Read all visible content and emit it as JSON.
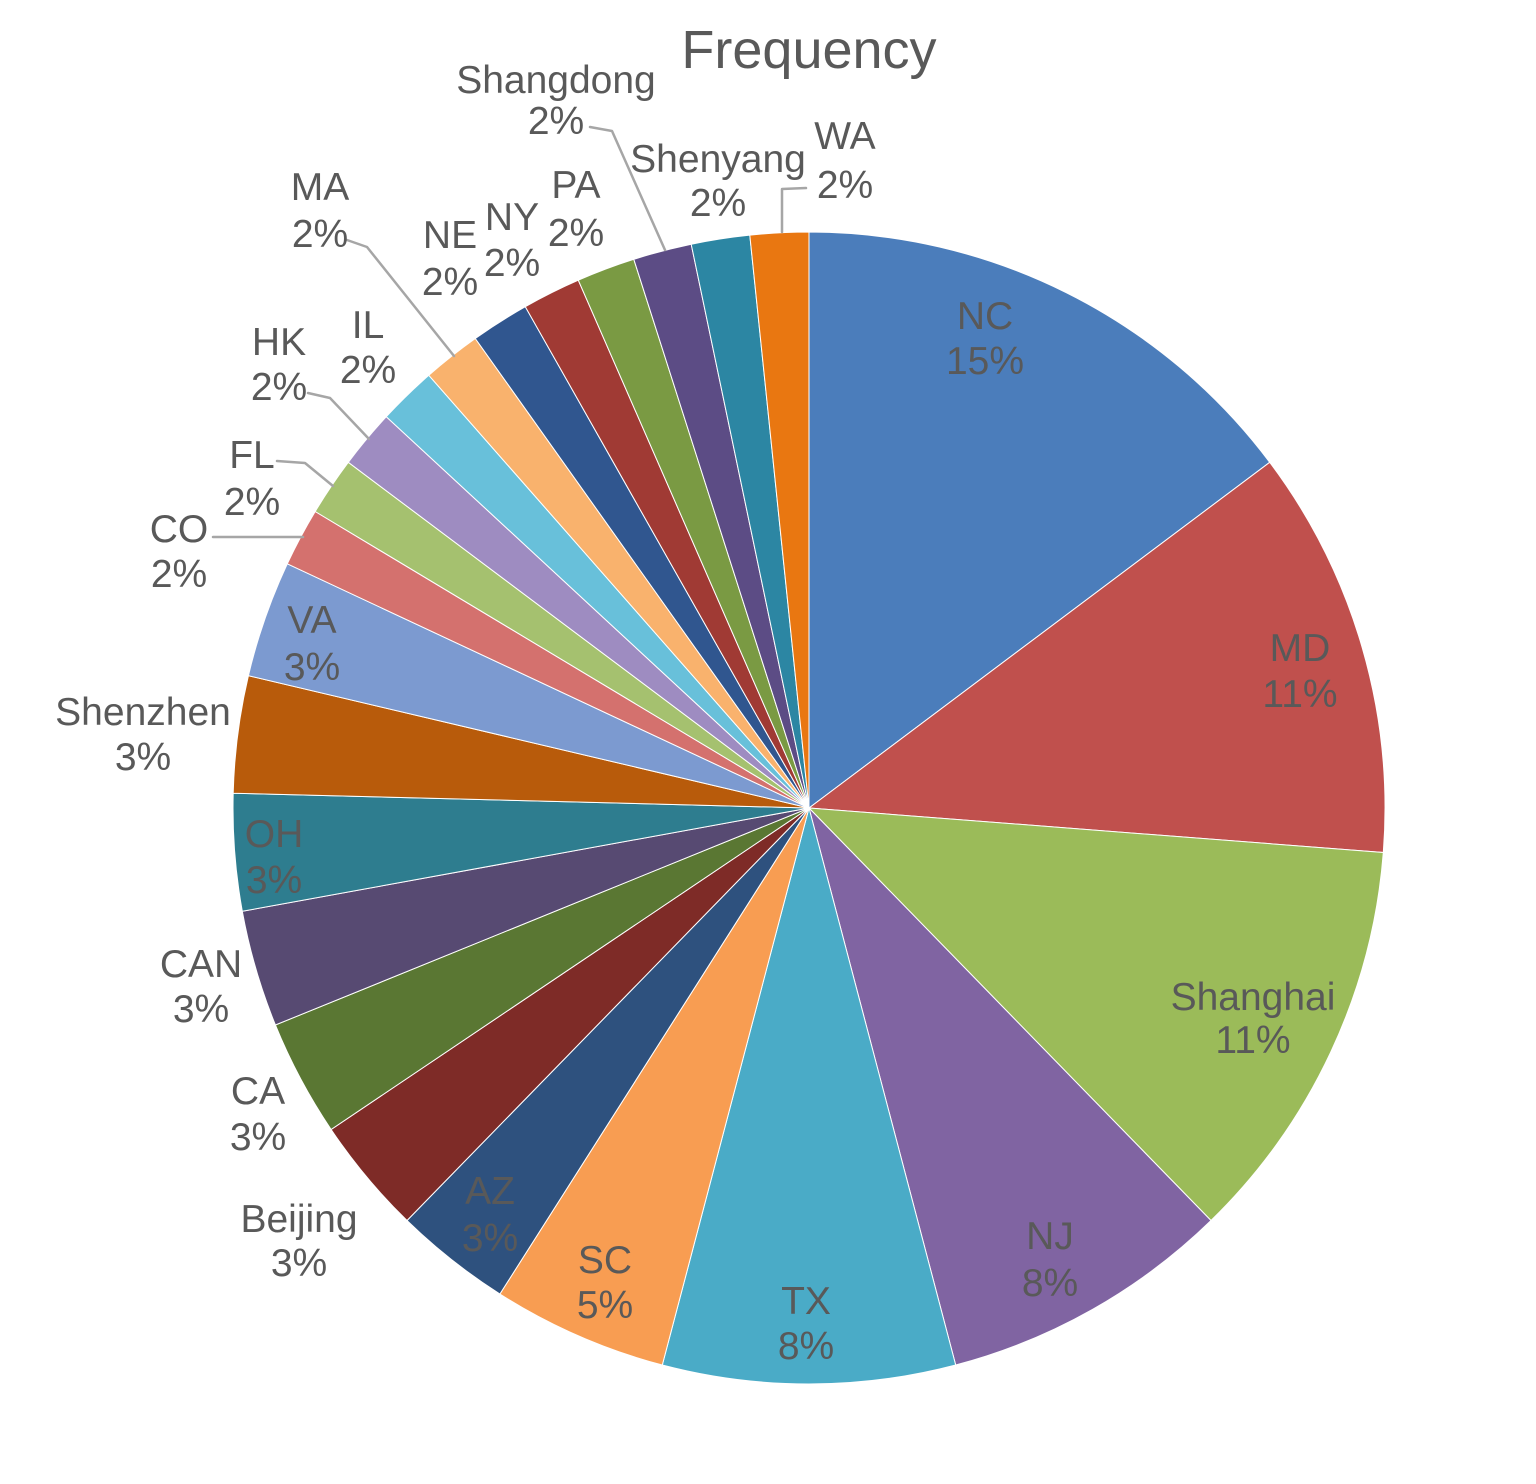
{
  "page": {
    "background_color": "#ffffff"
  },
  "chart_data": {
    "type": "pie",
    "title": "Frequency",
    "title_color": "#595959",
    "label_color": "#595959",
    "leader_line_color": "#a6a6a6",
    "legend": "none",
    "start_angle_deg": 0,
    "direction": "clockwise",
    "total_weight": 61,
    "slices": [
      {
        "label": "NC",
        "value": 9,
        "percent_label": "15%",
        "color": "#4b7dbb"
      },
      {
        "label": "MD",
        "value": 7,
        "percent_label": "11%",
        "color": "#c0504d"
      },
      {
        "label": "Shanghai",
        "value": 7,
        "percent_label": "11%",
        "color": "#9bbb59"
      },
      {
        "label": "NJ",
        "value": 5,
        "percent_label": "8%",
        "color": "#8064a2"
      },
      {
        "label": "TX",
        "value": 5,
        "percent_label": "8%",
        "color": "#4aabc7"
      },
      {
        "label": "SC",
        "value": 3,
        "percent_label": "5%",
        "color": "#f89d52"
      },
      {
        "label": "AZ",
        "value": 2,
        "percent_label": "3%",
        "color": "#2e517e"
      },
      {
        "label": "Beijing",
        "value": 2,
        "percent_label": "3%",
        "color": "#7e2b27"
      },
      {
        "label": "CA",
        "value": 2,
        "percent_label": "3%",
        "color": "#5a7733"
      },
      {
        "label": "CAN",
        "value": 2,
        "percent_label": "3%",
        "color": "#574a72"
      },
      {
        "label": "OH",
        "value": 2,
        "percent_label": "3%",
        "color": "#2e7d8f"
      },
      {
        "label": "Shenzhen",
        "value": 2,
        "percent_label": "3%",
        "color": "#b85b0b"
      },
      {
        "label": "VA",
        "value": 2,
        "percent_label": "3%",
        "color": "#7c9ad0"
      },
      {
        "label": "CO",
        "value": 1,
        "percent_label": "2%",
        "color": "#d4716e"
      },
      {
        "label": "FL",
        "value": 1,
        "percent_label": "2%",
        "color": "#a5c16f"
      },
      {
        "label": "HK",
        "value": 1,
        "percent_label": "2%",
        "color": "#9e8cc1"
      },
      {
        "label": "IL",
        "value": 1,
        "percent_label": "2%",
        "color": "#68c0da"
      },
      {
        "label": "MA",
        "value": 1,
        "percent_label": "2%",
        "color": "#f9b26d"
      },
      {
        "label": "NE",
        "value": 1,
        "percent_label": "2%",
        "color": "#30568f"
      },
      {
        "label": "NY",
        "value": 1,
        "percent_label": "2%",
        "color": "#a03a34"
      },
      {
        "label": "PA",
        "value": 1,
        "percent_label": "2%",
        "color": "#7a9a43"
      },
      {
        "label": "Shangdong",
        "value": 1,
        "percent_label": "2%",
        "color": "#5c4c85"
      },
      {
        "label": "Shenyang",
        "value": 1,
        "percent_label": "2%",
        "color": "#2c86a3"
      },
      {
        "label": "WA",
        "value": 1,
        "percent_label": "2%",
        "color": "#e97711"
      }
    ]
  }
}
